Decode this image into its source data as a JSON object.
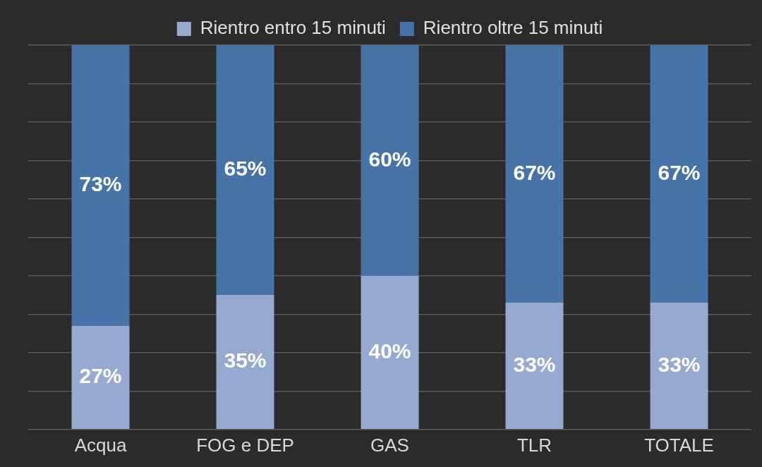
{
  "chart_data": {
    "type": "bar",
    "stacked": true,
    "categories": [
      "Acqua",
      "FOG e DEP",
      "GAS",
      "TLR",
      "TOTALE"
    ],
    "series": [
      {
        "name": "Rientro entro 15 minuti",
        "color": "#95a9d1",
        "values": [
          27,
          35,
          40,
          33,
          33
        ],
        "value_labels": [
          "27%",
          "35%",
          "40%",
          "33%",
          "33%"
        ]
      },
      {
        "name": "Rientro oltre 15 minuti",
        "color": "#4673a8",
        "values": [
          73,
          65,
          60,
          67,
          67
        ],
        "value_labels": [
          "73%",
          "65%",
          "60%",
          "67%",
          "67%"
        ]
      }
    ],
    "ylim": [
      0,
      100
    ],
    "yticks": [
      {
        "value": 0,
        "label": null
      },
      {
        "value": 10,
        "label": null
      },
      {
        "value": 20,
        "label": null
      },
      {
        "value": 30,
        "label": null
      },
      {
        "value": 40,
        "label": null
      },
      {
        "value": 50,
        "label": null
      },
      {
        "value": 60,
        "label": null
      },
      {
        "value": 70,
        "label": null
      },
      {
        "value": 80,
        "label": null
      },
      {
        "value": 90,
        "label": null
      },
      {
        "value": 100,
        "label": null
      }
    ],
    "grid": "y",
    "legend": "top",
    "tick_labels": "x"
  }
}
